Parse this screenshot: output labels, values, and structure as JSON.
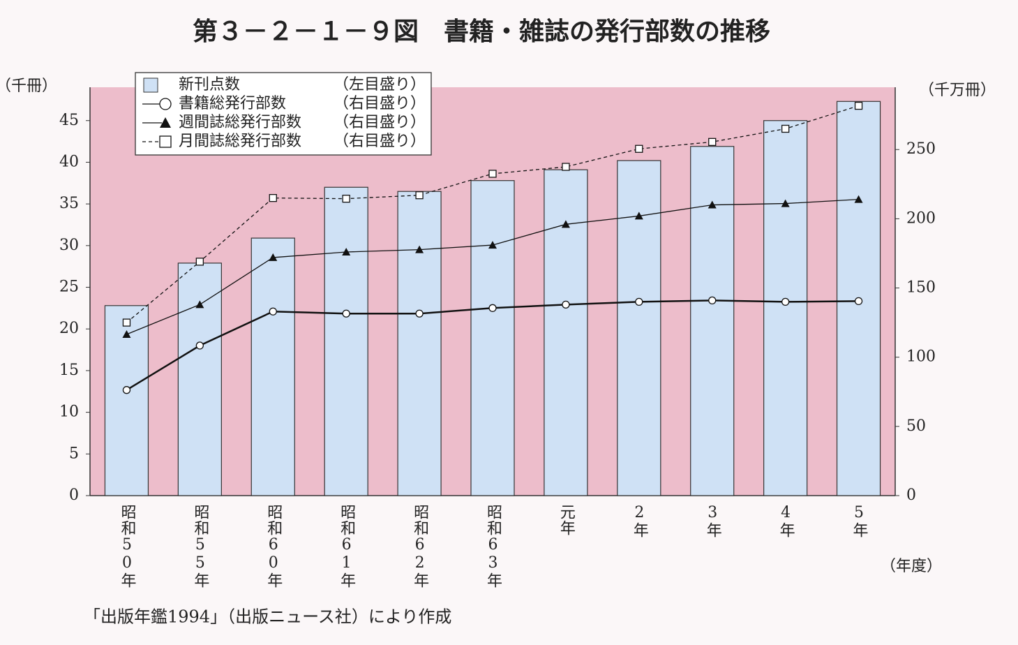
{
  "chart_data": {
    "type": "bar",
    "title": "第３－２－１－９図　書籍・雑誌の発行部数の推移",
    "y_unit": "（千冊）",
    "y2_unit": "（千万冊）",
    "x_unit": "（年度）",
    "source": "「出版年鑑1994」（出版ニュース社）により作成",
    "categories": [
      "昭和50年",
      "昭和55年",
      "昭和60年",
      "昭和61年",
      "昭和62年",
      "昭和63年",
      "元年",
      "2年",
      "3年",
      "4年",
      "5年"
    ],
    "ylim": [
      0,
      49
    ],
    "yticks": [
      0,
      5,
      10,
      15,
      20,
      25,
      30,
      35,
      40,
      45
    ],
    "y2lim": [
      0,
      295
    ],
    "y2ticks": [
      0,
      50,
      100,
      150,
      200,
      250
    ],
    "plot_background": "#edbdcb",
    "series": [
      {
        "name": "新刊点数",
        "scale_label": "（左目盛り）",
        "type": "bar",
        "axis": "y",
        "color": "#cfe1f5",
        "values": [
          22.8,
          27.9,
          30.9,
          37.0,
          36.5,
          37.8,
          39.1,
          40.2,
          41.9,
          45.0,
          47.3
        ]
      },
      {
        "name": "書籍総発行部数",
        "scale_label": "（右目盛り）",
        "type": "line",
        "axis": "y2",
        "color": "#111111",
        "marker": "circle",
        "dash": false,
        "values": [
          76.3,
          108.4,
          133,
          131.5,
          131.5,
          135.5,
          138,
          140,
          141,
          140,
          140.5
        ]
      },
      {
        "name": "週間誌総発行部数",
        "scale_label": "（右目盛り）",
        "type": "line",
        "axis": "y2",
        "color": "#111111",
        "marker": "triangle",
        "dash": false,
        "values": [
          116.5,
          138,
          172,
          176,
          177.7,
          181,
          196,
          202,
          210,
          211,
          214
        ]
      },
      {
        "name": "月間誌総発行部数",
        "scale_label": "（右目盛り）",
        "type": "line",
        "axis": "y2",
        "color": "#111111",
        "marker": "square",
        "dash": true,
        "values": [
          125,
          169,
          215,
          214.5,
          217,
          232.5,
          237.5,
          250.5,
          255.5,
          265,
          281.6
        ]
      }
    ]
  }
}
